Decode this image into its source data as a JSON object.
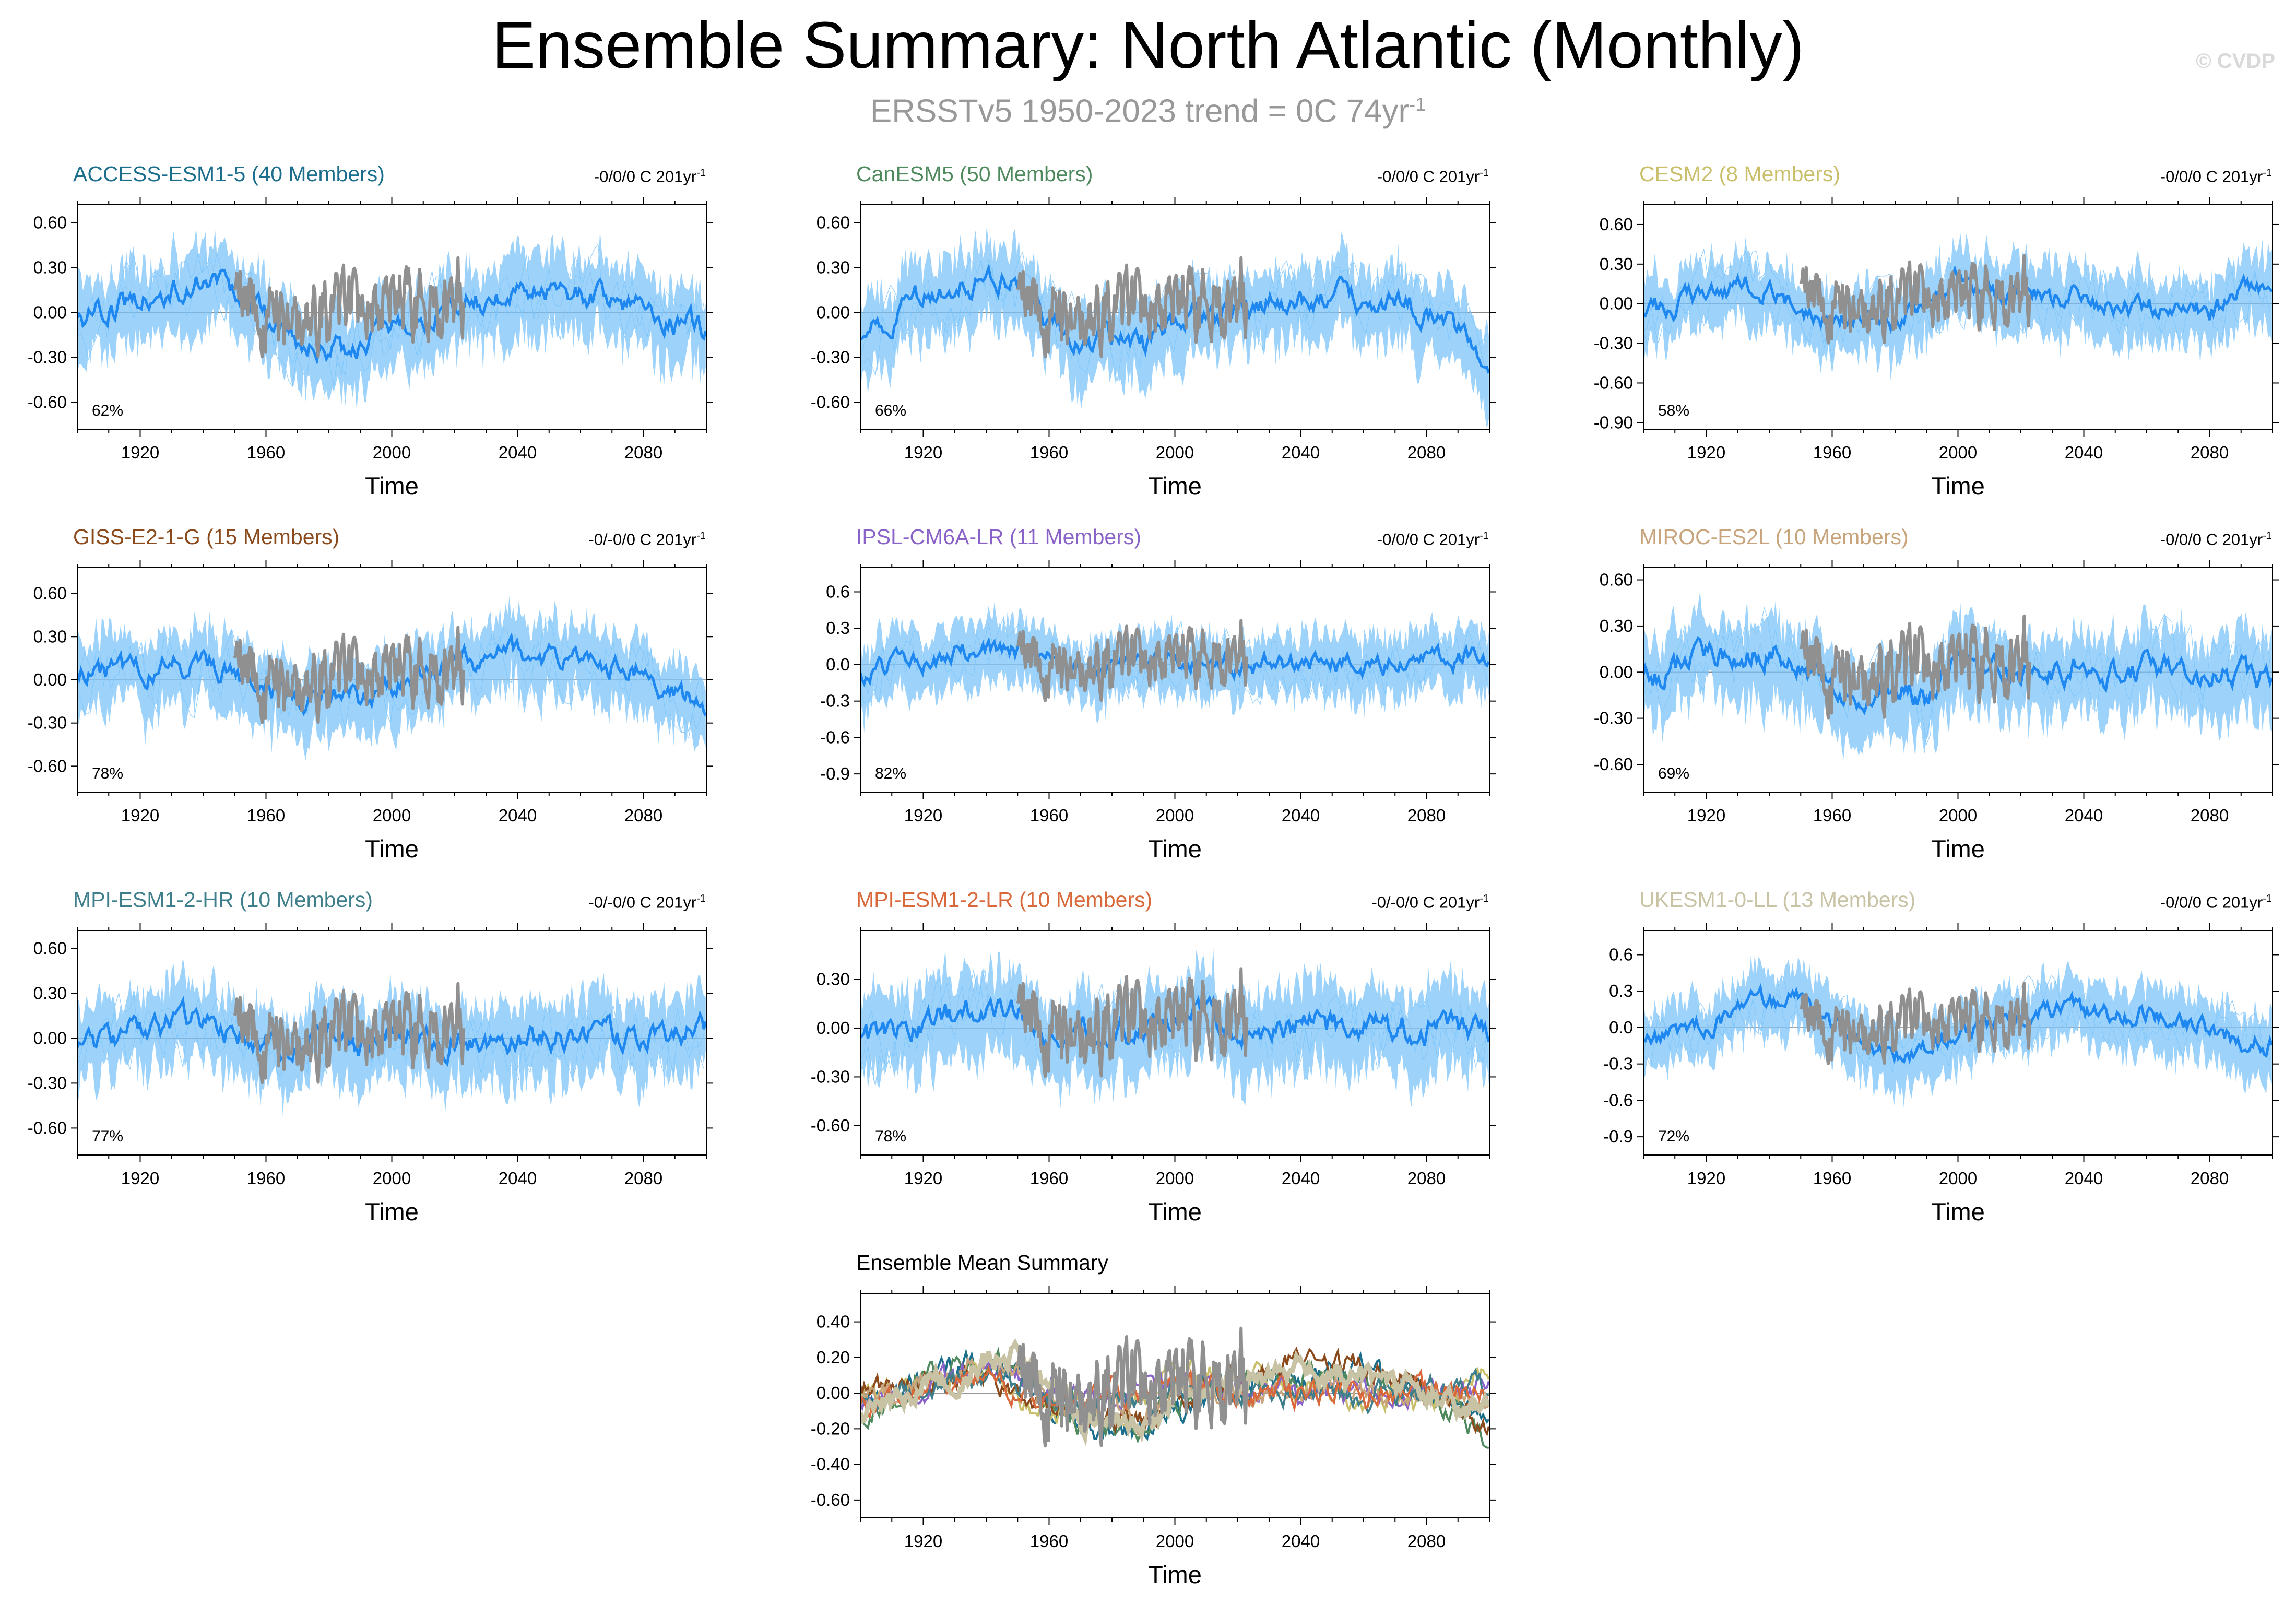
{
  "title": "Ensemble Summary: North Atlantic (Monthly)",
  "subtitle": "ERSSTv5 1950-2023 trend = 0C 74yr",
  "subtitle_sup": "-1",
  "watermark": "© CVDP",
  "colors": {
    "ensemble_mean": "#1e88f0",
    "ensemble_spread": "#7cc4fa",
    "observed": "#909090"
  },
  "chart_data": [
    {
      "type": "line",
      "title": "ACCESS-ESM1-5 (40 Members)",
      "title_color": "#1b6f8c",
      "trend_text": "-0/0/0 C 201yr",
      "trend_sup": "-1",
      "pct_label": "62%",
      "xlabel": "Time",
      "ylabel": "",
      "xlim": [
        1900,
        2100
      ],
      "ylim": [
        -0.78,
        0.72
      ],
      "yticks": [
        -0.6,
        -0.3,
        0.0,
        0.3,
        0.6
      ],
      "ytick_labels": [
        "-0.60",
        "-0.30",
        "0.00",
        "0.30",
        "0.60"
      ],
      "xticks": [
        1920,
        1960,
        2000,
        2040,
        2080
      ],
      "ensemble_mean": {
        "x": [
          1900,
          1920,
          1940,
          1950,
          1960,
          1970,
          1980,
          1990,
          2000,
          2020,
          2040,
          2060,
          2080,
          2100
        ],
        "y": [
          -0.05,
          0.08,
          0.2,
          0.15,
          -0.05,
          -0.2,
          -0.25,
          -0.25,
          -0.12,
          0.05,
          0.12,
          0.12,
          0.05,
          -0.15
        ]
      },
      "observed": {
        "x": [
          1950,
          1960,
          1970,
          1980,
          1990,
          2000,
          2010,
          2023
        ],
        "y": [
          0.15,
          0.0,
          -0.15,
          -0.05,
          0.05,
          0.15,
          0.1,
          0.2
        ]
      }
    },
    {
      "type": "line",
      "title": "CanESM5 (50 Members)",
      "title_color": "#4f8a5e",
      "trend_text": "-0/0/0 C 201yr",
      "trend_sup": "-1",
      "pct_label": "66%",
      "xlabel": "Time",
      "ylabel": "",
      "xlim": [
        1900,
        2100
      ],
      "ylim": [
        -0.78,
        0.72
      ],
      "yticks": [
        -0.6,
        -0.3,
        0.0,
        0.3,
        0.6
      ],
      "ytick_labels": [
        "-0.60",
        "-0.30",
        "0.00",
        "0.30",
        "0.60"
      ],
      "xticks": [
        1920,
        1960,
        2000,
        2040,
        2080
      ],
      "ensemble_mean": {
        "x": [
          1900,
          1920,
          1940,
          1950,
          1960,
          1970,
          1980,
          1990,
          2000,
          2020,
          2040,
          2060,
          2080,
          2100
        ],
        "y": [
          -0.2,
          0.1,
          0.22,
          0.18,
          -0.05,
          -0.18,
          -0.2,
          -0.22,
          -0.05,
          0.05,
          0.08,
          0.08,
          0.02,
          -0.28
        ]
      },
      "observed": {
        "x": [
          1950,
          1960,
          1970,
          1980,
          1990,
          2000,
          2010,
          2023
        ],
        "y": [
          0.15,
          0.0,
          -0.15,
          -0.05,
          0.05,
          0.15,
          0.1,
          0.2
        ]
      }
    },
    {
      "type": "line",
      "title": "CESM2 (8 Members)",
      "title_color": "#c9be6a",
      "trend_text": "-0/0/0 C 201yr",
      "trend_sup": "-1",
      "pct_label": "58%",
      "xlabel": "Time",
      "ylabel": "",
      "xlim": [
        1900,
        2100
      ],
      "ylim": [
        -0.95,
        0.75
      ],
      "yticks": [
        -0.9,
        -0.6,
        -0.3,
        0.0,
        0.3,
        0.6
      ],
      "ytick_labels": [
        "-0.90",
        "-0.60",
        "-0.30",
        "0.00",
        "0.30",
        "0.60"
      ],
      "xticks": [
        1920,
        1960,
        2000,
        2040,
        2080
      ],
      "ensemble_mean": {
        "x": [
          1900,
          1920,
          1940,
          1950,
          1960,
          1970,
          1980,
          1990,
          2000,
          2020,
          2040,
          2060,
          2080,
          2100
        ],
        "y": [
          -0.1,
          0.1,
          0.12,
          0.0,
          -0.15,
          -0.05,
          -0.15,
          -0.02,
          0.15,
          0.1,
          0.02,
          -0.05,
          -0.05,
          0.15
        ]
      },
      "observed": {
        "x": [
          1950,
          1960,
          1970,
          1980,
          1990,
          2000,
          2010,
          2023
        ],
        "y": [
          0.15,
          0.0,
          -0.15,
          -0.05,
          0.05,
          0.15,
          0.1,
          0.2
        ]
      }
    },
    {
      "type": "line",
      "title": "GISS-E2-1-G (15 Members)",
      "title_color": "#8a4a1c",
      "trend_text": "-0/-0/0 C 201yr",
      "trend_sup": "-1",
      "pct_label": "78%",
      "xlabel": "Time",
      "ylabel": "",
      "xlim": [
        1900,
        2100
      ],
      "ylim": [
        -0.78,
        0.78
      ],
      "yticks": [
        -0.6,
        -0.3,
        0.0,
        0.3,
        0.6
      ],
      "ytick_labels": [
        "-0.60",
        "-0.30",
        "0.00",
        "0.30",
        "0.60"
      ],
      "xticks": [
        1920,
        1960,
        2000,
        2040,
        2080
      ],
      "ensemble_mean": {
        "x": [
          1900,
          1920,
          1940,
          1950,
          1960,
          1970,
          1980,
          1990,
          2000,
          2020,
          2040,
          2060,
          2080,
          2100
        ],
        "y": [
          0.02,
          0.08,
          0.1,
          0.05,
          -0.05,
          -0.12,
          -0.12,
          -0.15,
          -0.05,
          0.12,
          0.2,
          0.15,
          0.05,
          -0.25
        ]
      },
      "observed": {
        "x": [
          1950,
          1960,
          1970,
          1980,
          1990,
          2000,
          2010,
          2023
        ],
        "y": [
          0.15,
          0.0,
          -0.15,
          -0.05,
          0.05,
          0.15,
          0.1,
          0.2
        ]
      }
    },
    {
      "type": "line",
      "title": "IPSL-CM6A-LR (11 Members)",
      "title_color": "#8a63c8",
      "trend_text": "-0/0/0 C 201yr",
      "trend_sup": "-1",
      "pct_label": "82%",
      "xlabel": "Time",
      "ylabel": "",
      "xlim": [
        1900,
        2100
      ],
      "ylim": [
        -1.05,
        0.8
      ],
      "yticks": [
        -0.9,
        -0.6,
        -0.3,
        0.0,
        0.3,
        0.6
      ],
      "ytick_labels": [
        "-0.9",
        "-0.6",
        "-0.3",
        "0.0",
        "0.3",
        "0.6"
      ],
      "xticks": [
        1920,
        1960,
        2000,
        2040,
        2080
      ],
      "ensemble_mean": {
        "x": [
          1900,
          1920,
          1940,
          1950,
          1960,
          1970,
          1980,
          1990,
          2000,
          2020,
          2040,
          2060,
          2080,
          2100
        ],
        "y": [
          -0.1,
          0.05,
          0.15,
          0.12,
          0.0,
          -0.05,
          -0.05,
          0.0,
          0.05,
          0.0,
          0.0,
          0.0,
          0.02,
          0.08
        ]
      },
      "observed": {
        "x": [
          1950,
          1960,
          1970,
          1980,
          1990,
          2000,
          2010,
          2023
        ],
        "y": [
          0.15,
          0.0,
          -0.15,
          -0.05,
          0.05,
          0.15,
          0.1,
          0.2
        ]
      }
    },
    {
      "type": "line",
      "title": "MIROC-ES2L (10 Members)",
      "title_color": "#c8a47c",
      "trend_text": "-0/0/0 C 201yr",
      "trend_sup": "-1",
      "pct_label": "69%",
      "xlabel": "Time",
      "ylabel": "",
      "xlim": [
        1900,
        2100
      ],
      "ylim": [
        -0.78,
        0.68
      ],
      "yticks": [
        -0.6,
        -0.3,
        0.0,
        0.3,
        0.6
      ],
      "ytick_labels": [
        "-0.60",
        "-0.30",
        "0.00",
        "0.30",
        "0.60"
      ],
      "xticks": [
        1920,
        1960,
        2000,
        2040,
        2080
      ],
      "ensemble_mean": {
        "x": [
          1900,
          1920,
          1940,
          1950,
          1960,
          1970,
          1980,
          1990,
          2000,
          2020,
          2040,
          2060,
          2080,
          2100
        ],
        "y": [
          -0.05,
          0.1,
          0.15,
          0.1,
          -0.1,
          -0.15,
          -0.05,
          -0.2,
          0.05,
          0.0,
          0.0,
          0.02,
          0.0,
          -0.05
        ]
      },
      "observed": {
        "x": [
          1950,
          1960,
          1970,
          1980,
          1990,
          2000,
          2010,
          2023
        ],
        "y": [
          0.15,
          0.0,
          -0.15,
          -0.05,
          0.05,
          0.15,
          0.1,
          0.2
        ]
      }
    },
    {
      "type": "line",
      "title": "MPI-ESM1-2-HR (10 Members)",
      "title_color": "#3f7f8c",
      "trend_text": "-0/-0/0 C 201yr",
      "trend_sup": "-1",
      "pct_label": "77%",
      "xlabel": "Time",
      "ylabel": "",
      "xlim": [
        1900,
        2100
      ],
      "ylim": [
        -0.78,
        0.72
      ],
      "yticks": [
        -0.6,
        -0.3,
        0.0,
        0.3,
        0.6
      ],
      "ytick_labels": [
        "-0.60",
        "-0.30",
        "0.00",
        "0.30",
        "0.60"
      ],
      "xticks": [
        1920,
        1960,
        2000,
        2040,
        2080
      ],
      "ensemble_mean": {
        "x": [
          1900,
          1920,
          1940,
          1950,
          1960,
          1970,
          1980,
          1990,
          2000,
          2020,
          2040,
          2060,
          2080,
          2100
        ],
        "y": [
          -0.1,
          0.05,
          0.1,
          0.05,
          0.0,
          -0.05,
          0.0,
          -0.1,
          0.05,
          0.0,
          0.0,
          0.0,
          0.0,
          0.05
        ]
      },
      "observed": {
        "x": [
          1950,
          1960,
          1970,
          1980,
          1990,
          2000,
          2010,
          2023
        ],
        "y": [
          0.15,
          0.0,
          -0.15,
          -0.05,
          0.05,
          0.15,
          0.1,
          0.2
        ]
      }
    },
    {
      "type": "line",
      "title": "MPI-ESM1-2-LR (10 Members)",
      "title_color": "#d9683a",
      "trend_text": "-0/-0/0 C 201yr",
      "trend_sup": "-1",
      "pct_label": "78%",
      "xlabel": "Time",
      "ylabel": "",
      "xlim": [
        1900,
        2100
      ],
      "ylim": [
        -0.78,
        0.6
      ],
      "yticks": [
        -0.6,
        -0.3,
        0.0,
        0.3
      ],
      "ytick_labels": [
        "-0.60",
        "-0.30",
        "0.00",
        "0.30"
      ],
      "xticks": [
        1920,
        1960,
        2000,
        2040,
        2080
      ],
      "ensemble_mean": {
        "x": [
          1900,
          1920,
          1940,
          1950,
          1960,
          1970,
          1980,
          1990,
          2000,
          2020,
          2040,
          2060,
          2080,
          2100
        ],
        "y": [
          -0.1,
          0.05,
          0.1,
          0.05,
          -0.05,
          -0.05,
          0.0,
          0.0,
          0.05,
          0.0,
          0.0,
          0.0,
          0.0,
          0.0
        ]
      },
      "observed": {
        "x": [
          1950,
          1960,
          1970,
          1980,
          1990,
          2000,
          2010,
          2023
        ],
        "y": [
          0.15,
          0.0,
          -0.15,
          -0.05,
          0.05,
          0.15,
          0.1,
          0.2
        ]
      }
    },
    {
      "type": "line",
      "title": "UKESM1-0-LL (13 Members)",
      "title_color": "#c9c3a6",
      "trend_text": "-0/0/0 C 201yr",
      "trend_sup": "-1",
      "pct_label": "72%",
      "xlabel": "Time",
      "ylabel": "",
      "xlim": [
        1900,
        2100
      ],
      "ylim": [
        -1.05,
        0.8
      ],
      "yticks": [
        -0.9,
        -0.6,
        -0.3,
        0.0,
        0.3,
        0.6
      ],
      "ytick_labels": [
        "-0.9",
        "-0.6",
        "-0.3",
        "0.0",
        "0.3",
        "0.6"
      ],
      "xticks": [
        1920,
        1960,
        2000,
        2040,
        2080
      ],
      "ensemble_mean": {
        "x": [
          1900,
          1920,
          1940,
          1950,
          1960,
          1970,
          1980,
          1990,
          2000,
          2020,
          2040,
          2060,
          2080,
          2100
        ],
        "y": [
          -0.15,
          0.05,
          0.2,
          0.25,
          0.05,
          -0.15,
          -0.2,
          -0.2,
          -0.05,
          0.1,
          0.15,
          0.1,
          0.0,
          -0.15
        ]
      },
      "observed": {
        "x": [
          1950,
          1960,
          1970,
          1980,
          1990,
          2000,
          2010,
          2023
        ],
        "y": [
          0.15,
          0.0,
          -0.15,
          -0.05,
          0.05,
          0.15,
          0.1,
          0.2
        ]
      }
    },
    {
      "type": "line",
      "title": "Ensemble Mean Summary",
      "title_color": "#000000",
      "trend_text": "",
      "trend_sup": "",
      "pct_label": "",
      "xlabel": "Time",
      "ylabel": "",
      "xlim": [
        1900,
        2100
      ],
      "ylim": [
        -0.7,
        0.56
      ],
      "yticks": [
        -0.6,
        -0.4,
        -0.2,
        0.0,
        0.2,
        0.4
      ],
      "ytick_labels": [
        "-0.60",
        "-0.40",
        "-0.20",
        "0.00",
        "0.20",
        "0.40"
      ],
      "xticks": [
        1920,
        1960,
        2000,
        2040,
        2080
      ],
      "observed": {
        "x": [
          1950,
          1960,
          1970,
          1980,
          1990,
          2000,
          2010,
          2023
        ],
        "y": [
          0.15,
          0.0,
          -0.15,
          -0.05,
          0.05,
          0.15,
          0.1,
          0.2
        ]
      }
    }
  ]
}
